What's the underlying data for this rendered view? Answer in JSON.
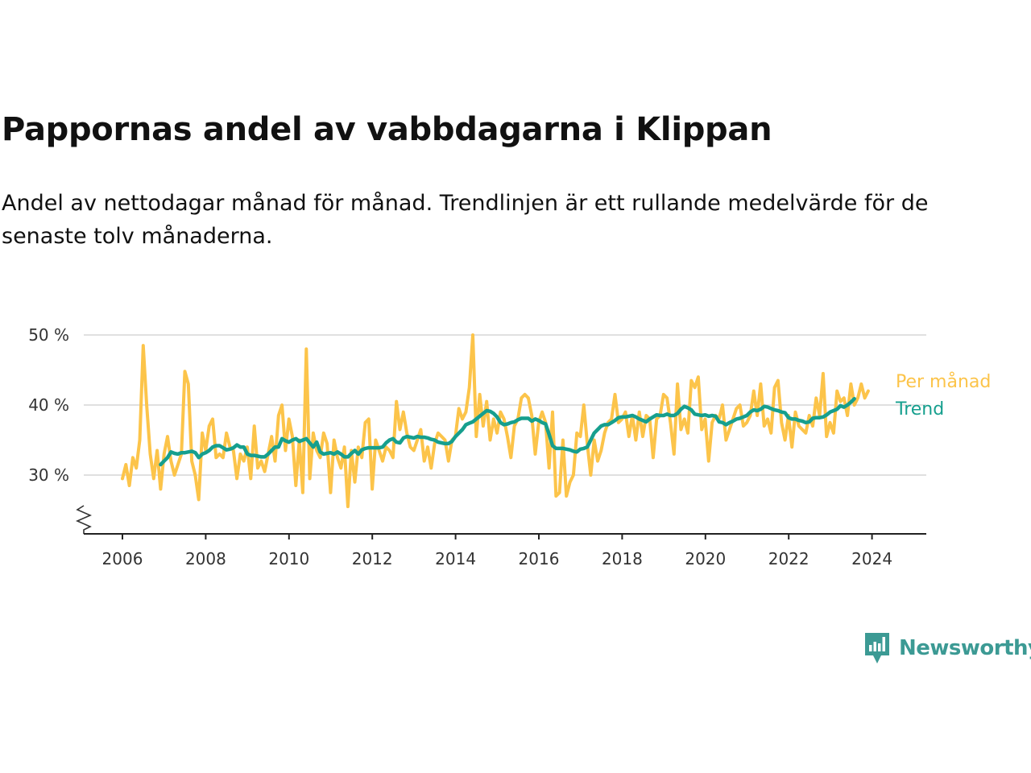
{
  "title": "Pappornas andel av vabbdagarna i Klippan",
  "subtitle": "Andel av nettodagar månad för månad. Trendlinjen är ett rullande medelvärde för de senaste tolv månaderna.",
  "brand": {
    "name": "Newsworthy",
    "icon": "newsworthy-logo-icon",
    "color": "#3c9a94"
  },
  "chart_data": {
    "type": "line",
    "title": "Pappornas andel av vabbdagarna i Klippan",
    "xlabel": "",
    "ylabel": "",
    "xlim": [
      2005.7,
      2025.3
    ],
    "ylim": [
      22,
      50
    ],
    "y_axis_break": true,
    "y_ticks": [
      30,
      40,
      50
    ],
    "y_tick_labels": [
      "30 %",
      "40 %",
      "50 %"
    ],
    "x_ticks": [
      2006,
      2008,
      2010,
      2012,
      2014,
      2016,
      2018,
      2020,
      2022,
      2024
    ],
    "x_tick_labels": [
      "2006",
      "2008",
      "2010",
      "2012",
      "2014",
      "2016",
      "2018",
      "2020",
      "2022",
      "2024"
    ],
    "grid": true,
    "legend_placement": "right, at line ends",
    "series": [
      {
        "name": "Per månad",
        "color": "#fcc44a",
        "x_start": 2006.0,
        "x_step": 0.0833,
        "values": [
          29.5,
          31.5,
          28.5,
          32.5,
          31.0,
          35.0,
          48.5,
          40.0,
          33.0,
          29.5,
          33.5,
          28.0,
          33.0,
          35.5,
          32.0,
          30.0,
          31.5,
          33.0,
          44.8,
          43.0,
          32.0,
          30.0,
          26.5,
          36.0,
          33.5,
          37.0,
          38.0,
          32.5,
          33.0,
          32.5,
          36.0,
          34.0,
          33.5,
          29.5,
          33.0,
          32.0,
          34.0,
          29.5,
          37.0,
          31.0,
          32.0,
          30.5,
          33.0,
          35.5,
          32.0,
          38.5,
          40.0,
          33.5,
          38.0,
          35.5,
          28.5,
          35.0,
          27.5,
          48.0,
          29.5,
          36.0,
          33.5,
          32.5,
          36.0,
          34.5,
          27.5,
          35.0,
          32.5,
          31.0,
          34.0,
          25.5,
          33.5,
          29.0,
          34.0,
          32.5,
          37.5,
          38.0,
          28.0,
          35.0,
          33.5,
          32.0,
          34.0,
          33.5,
          32.5,
          40.5,
          36.5,
          39.0,
          36.0,
          34.0,
          33.5,
          35.0,
          36.5,
          32.0,
          34.0,
          31.0,
          34.5,
          36.0,
          35.5,
          35.0,
          32.0,
          35.0,
          35.5,
          39.5,
          38.0,
          39.0,
          42.5,
          50.0,
          35.5,
          41.5,
          37.0,
          40.5,
          35.0,
          38.0,
          36.0,
          39.0,
          38.0,
          35.5,
          32.5,
          37.0,
          38.0,
          41.0,
          41.5,
          41.0,
          38.5,
          33.0,
          37.5,
          39.0,
          37.5,
          31.0,
          39.0,
          27.0,
          27.5,
          35.0,
          27.0,
          29.0,
          30.0,
          36.0,
          35.5,
          40.0,
          34.5,
          30.0,
          35.0,
          32.0,
          33.5,
          36.0,
          37.5,
          38.0,
          41.5,
          37.5,
          38.0,
          39.0,
          35.5,
          38.5,
          35.0,
          39.0,
          35.5,
          38.5,
          38.0,
          32.5,
          38.0,
          38.5,
          41.5,
          41.0,
          37.5,
          33.0,
          43.0,
          36.5,
          38.0,
          36.0,
          43.5,
          42.5,
          44.0,
          36.5,
          38.0,
          32.0,
          37.5,
          38.5,
          38.0,
          40.0,
          35.0,
          36.5,
          38.0,
          39.5,
          40.0,
          37.0,
          37.5,
          38.5,
          42.0,
          38.5,
          43.0,
          37.0,
          38.0,
          36.0,
          42.5,
          43.5,
          37.5,
          35.0,
          38.5,
          34.0,
          39.0,
          37.0,
          36.5,
          36.0,
          38.5,
          37.0,
          41.0,
          38.5,
          44.5,
          35.5,
          37.5,
          36.0,
          42.0,
          40.5,
          41.0,
          38.5,
          43.0,
          40.0,
          41.0,
          43.0,
          41.0,
          42.0
        ]
      },
      {
        "name": "Trend",
        "color": "#169f8e",
        "x_start": 2006.9167,
        "x_step": 0.0833,
        "values": [
          31.5,
          32.0,
          32.5,
          33.3,
          33.1,
          33.0,
          33.2,
          33.2,
          33.3,
          33.4,
          33.2,
          32.5,
          33.0,
          33.2,
          33.5,
          34.0,
          34.2,
          34.2,
          33.9,
          33.6,
          33.7,
          33.9,
          34.3,
          34.0,
          34.0,
          33.0,
          32.8,
          32.8,
          32.7,
          32.6,
          32.6,
          33.0,
          33.5,
          34.0,
          34.0,
          35.2,
          34.9,
          34.7,
          35.0,
          35.2,
          34.8,
          35.0,
          35.2,
          34.6,
          34.0,
          34.7,
          33.3,
          33.0,
          33.1,
          33.2,
          33.0,
          33.3,
          33.0,
          32.6,
          32.6,
          33.1,
          33.5,
          33.0,
          33.6,
          33.8,
          33.9,
          33.9,
          33.9,
          33.9,
          34.0,
          34.6,
          35.0,
          35.2,
          34.7,
          34.6,
          35.3,
          35.5,
          35.4,
          35.3,
          35.5,
          35.4,
          35.4,
          35.3,
          35.1,
          35.0,
          34.7,
          34.6,
          34.5,
          34.5,
          34.8,
          35.5,
          36.0,
          36.5,
          37.2,
          37.4,
          37.6,
          38.0,
          38.4,
          38.8,
          39.2,
          39.1,
          38.8,
          38.3,
          37.5,
          37.2,
          37.3,
          37.5,
          37.6,
          37.9,
          38.1,
          38.1,
          38.1,
          37.7,
          38.0,
          37.8,
          37.5,
          37.3,
          35.8,
          34.2,
          33.8,
          33.8,
          33.8,
          33.7,
          33.6,
          33.4,
          33.3,
          33.7,
          33.8,
          34.0,
          35.0,
          36.0,
          36.5,
          37.0,
          37.2,
          37.2,
          37.5,
          37.8,
          38.2,
          38.3,
          38.3,
          38.4,
          38.5,
          38.3,
          38.0,
          37.8,
          37.6,
          38.0,
          38.3,
          38.6,
          38.5,
          38.5,
          38.7,
          38.5,
          38.5,
          38.8,
          39.4,
          39.8,
          39.6,
          39.3,
          38.7,
          38.6,
          38.5,
          38.6,
          38.4,
          38.5,
          38.4,
          37.6,
          37.5,
          37.2,
          37.5,
          37.7,
          38.0,
          38.1,
          38.3,
          38.5,
          39.0,
          39.3,
          39.2,
          39.4,
          39.8,
          39.7,
          39.5,
          39.3,
          39.2,
          39.0,
          38.9,
          38.2,
          38.0,
          38.0,
          37.8,
          37.7,
          37.5,
          37.6,
          38.1,
          38.2,
          38.2,
          38.3,
          38.6,
          39.0,
          39.2,
          39.4,
          39.9,
          39.7,
          40.0,
          40.4,
          40.9
        ]
      }
    ]
  }
}
